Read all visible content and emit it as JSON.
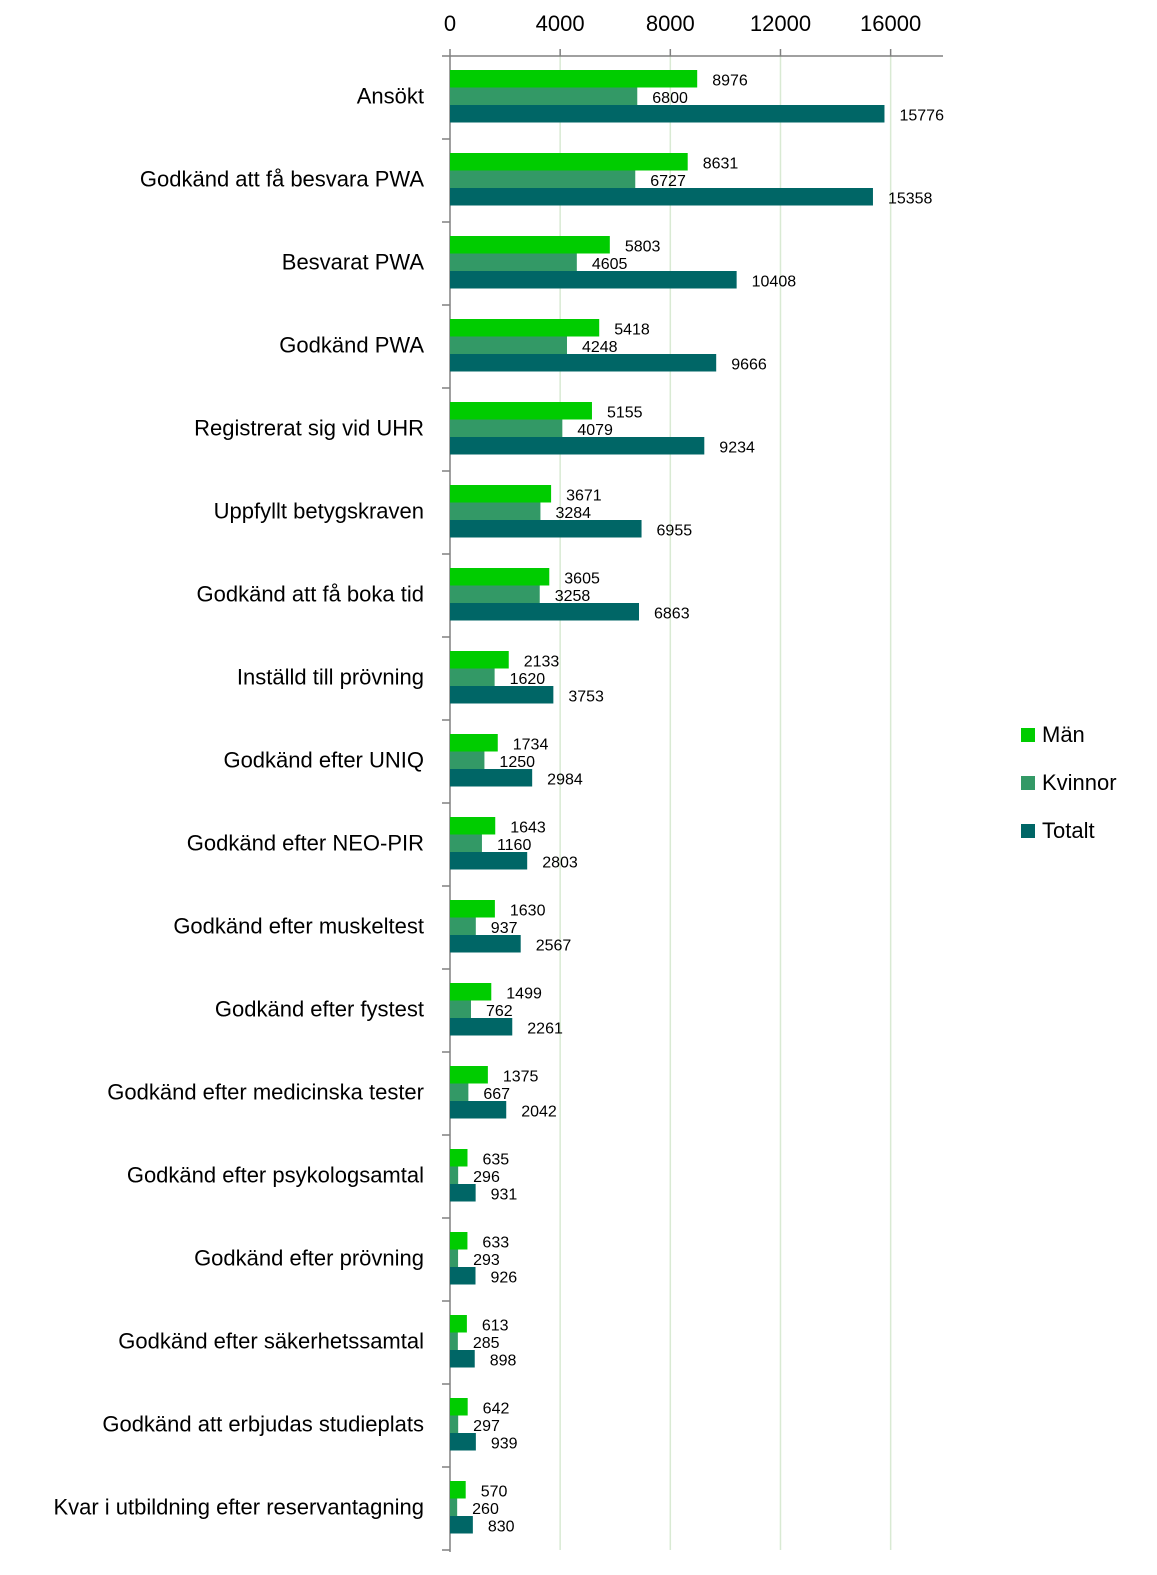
{
  "chart_data": {
    "type": "bar",
    "orientation": "horizontal",
    "title": "",
    "xlabel": "",
    "ylabel": "",
    "xlim": [
      0,
      18000
    ],
    "xticks": [
      0,
      4000,
      8000,
      12000,
      16000
    ],
    "x_axis_position": "top",
    "grid": "vertical",
    "legend_position": "right",
    "categories": [
      "Ansökt",
      "Godkänd att få besvara PWA",
      "Besvarat PWA",
      "Godkänd PWA",
      "Registrerat sig vid UHR",
      "Uppfyllt betygskraven",
      "Godkänd att få boka tid",
      "Inställd till prövning",
      "Godkänd efter UNIQ",
      "Godkänd efter NEO-PIR",
      "Godkänd efter muskeltest",
      "Godkänd efter fystest",
      "Godkänd efter medicinska tester",
      "Godkänd efter psykologsamtal",
      "Godkänd efter prövning",
      "Godkänd efter säkerhetssamtal",
      "Godkänd att erbjudas studieplats",
      "Kvar i utbildning efter reservantagning"
    ],
    "series": [
      {
        "name": "Män",
        "color": "#00cc00",
        "values": [
          8976,
          8631,
          5803,
          5418,
          5155,
          3671,
          3605,
          2133,
          1734,
          1643,
          1630,
          1499,
          1375,
          635,
          633,
          613,
          642,
          570
        ]
      },
      {
        "name": "Kvinnor",
        "color": "#339966",
        "values": [
          6800,
          6727,
          4605,
          4248,
          4079,
          3284,
          3258,
          1620,
          1250,
          1160,
          937,
          762,
          667,
          296,
          293,
          285,
          297,
          260
        ]
      },
      {
        "name": "Totalt",
        "color": "#006666",
        "values": [
          15776,
          15358,
          10408,
          9666,
          9234,
          6955,
          6863,
          3753,
          2984,
          2803,
          2567,
          2261,
          2042,
          931,
          926,
          898,
          939,
          830
        ]
      }
    ],
    "colors": {
      "gridline": "#d9ead3",
      "axis": "#808080"
    }
  }
}
